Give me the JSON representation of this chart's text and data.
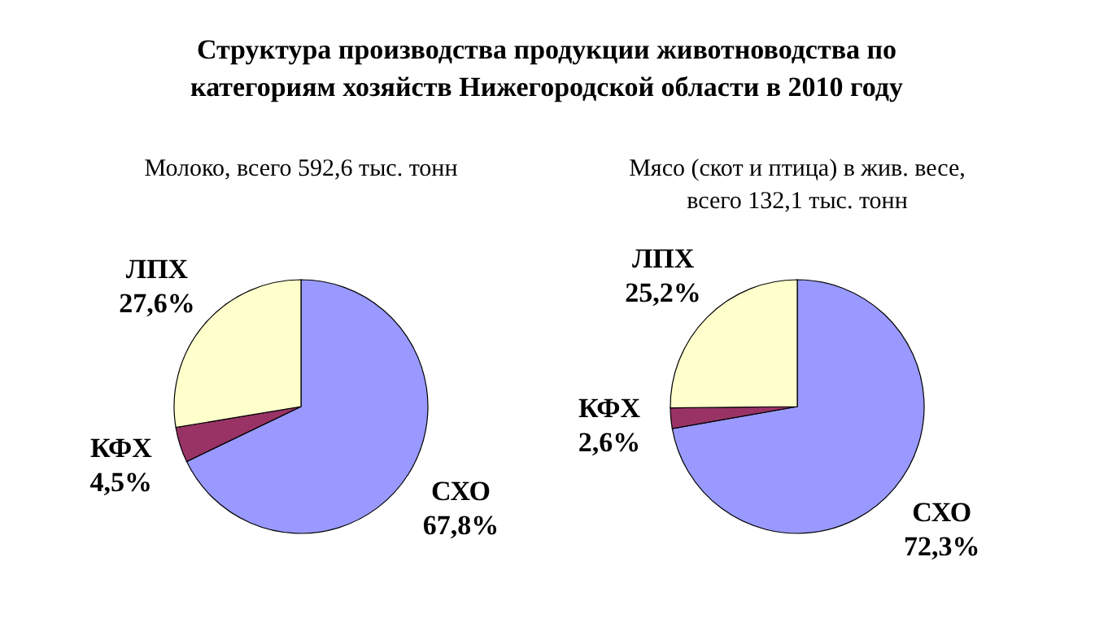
{
  "chart_data": [
    {
      "type": "pie",
      "title": "Структура производства продукции животноводства по категориям хозяйств Нижегородской области в 2010 году",
      "subtitle": "Молоко, всего 592,6 тыс. тонн",
      "categories": [
        "СХО",
        "КФХ",
        "ЛПХ"
      ],
      "values": [
        67.8,
        4.5,
        27.6
      ],
      "colors": [
        "#9999ff",
        "#993366",
        "#ffffcc"
      ],
      "value_labels": [
        "67,8%",
        "4,5%",
        "27,6%"
      ]
    },
    {
      "type": "pie",
      "subtitle": "Мясо (скот и птица) в жив. весе, всего 132,1 тыс. тонн",
      "categories": [
        "СХО",
        "КФХ",
        "ЛПХ"
      ],
      "values": [
        72.3,
        2.6,
        25.2
      ],
      "colors": [
        "#9999ff",
        "#993366",
        "#ffffcc"
      ],
      "value_labels": [
        "72,3%",
        "2,6%",
        "25,2%"
      ]
    }
  ]
}
